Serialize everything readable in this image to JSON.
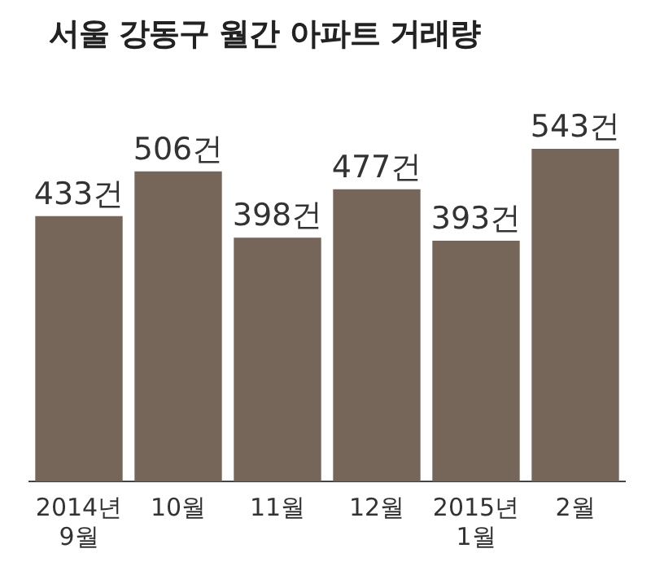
{
  "chart_data": {
    "type": "bar",
    "title": "서울 강동구 월간 아파트 거래량",
    "categories": [
      "2014년\n9월",
      "10월",
      "11월",
      "12월",
      "2015년\n1월",
      "2월"
    ],
    "values": [
      433,
      506,
      398,
      477,
      393,
      543
    ],
    "value_labels": [
      "433건",
      "506건",
      "398건",
      "477건",
      "393건",
      "543건"
    ],
    "color": "#76665a",
    "grid": false,
    "legend": false
  }
}
